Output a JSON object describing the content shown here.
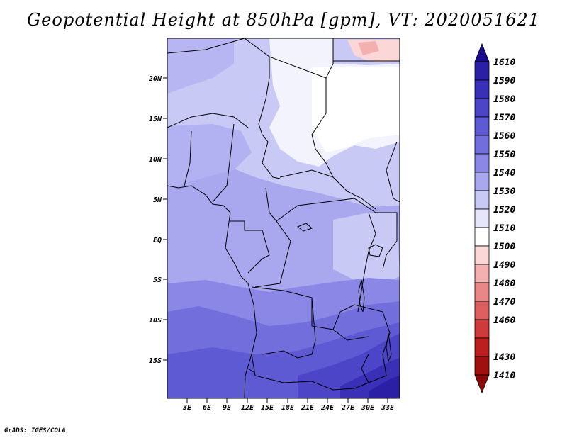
{
  "title": "Geopotential Height at 850hPa [gpm], VT: 2020051621",
  "credit": "GrADS: IGES/COLA",
  "map": {
    "lat_labels": [
      "20N",
      "15N",
      "10N",
      "5N",
      "EQ",
      "5S",
      "10S",
      "15S"
    ],
    "lon_labels": [
      "3E",
      "6E",
      "9E",
      "12E",
      "15E",
      "18E",
      "21E",
      "24E",
      "27E",
      "30E",
      "33E"
    ]
  },
  "colorbar": {
    "levels": [
      "1610",
      "1590",
      "1580",
      "1570",
      "1560",
      "1550",
      "1540",
      "1530",
      "1520",
      "1510",
      "1500",
      "1490",
      "1480",
      "1470",
      "1460",
      "1430",
      "1410"
    ],
    "colors": [
      "#1a0c8c",
      "#2b1fa6",
      "#3a30b8",
      "#4c45c8",
      "#5e5ad4",
      "#726fdd",
      "#8a87e6",
      "#a9a8ef",
      "#c9c9f6",
      "#e6e6fb",
      "#ffffff",
      "#fbd7d7",
      "#f4b0b0",
      "#e98787",
      "#de5f5f",
      "#cf3a3a",
      "#bb1f1f",
      "#a01010"
    ]
  }
}
